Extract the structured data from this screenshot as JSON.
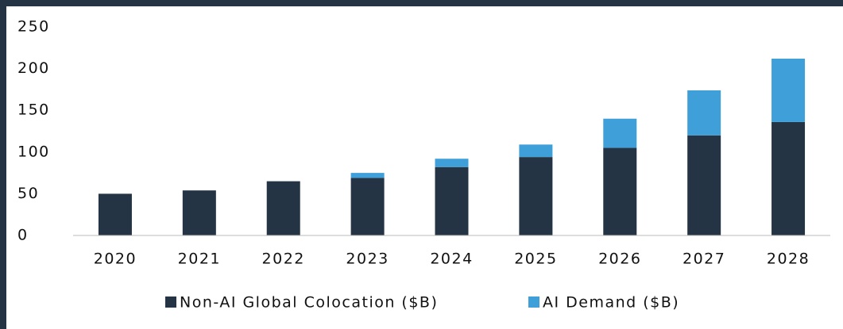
{
  "chart_data": {
    "type": "stacked_bar",
    "categories": [
      "2020",
      "2021",
      "2022",
      "2023",
      "2024",
      "2025",
      "2026",
      "2027",
      "2028"
    ],
    "series": [
      {
        "name": "Non-AI Global Colocation ($B)",
        "color": "#253444",
        "values": [
          50,
          54,
          65,
          69,
          82,
          94,
          105,
          120,
          136
        ]
      },
      {
        "name": "AI Demand ($B)",
        "color": "#3f9fd8",
        "values": [
          0,
          0,
          0,
          6,
          10,
          15,
          35,
          54,
          76
        ]
      }
    ],
    "ylim": [
      0,
      250
    ],
    "yticks": [
      0,
      50,
      100,
      150,
      200,
      250
    ],
    "grid": false,
    "legend": "bottom"
  }
}
